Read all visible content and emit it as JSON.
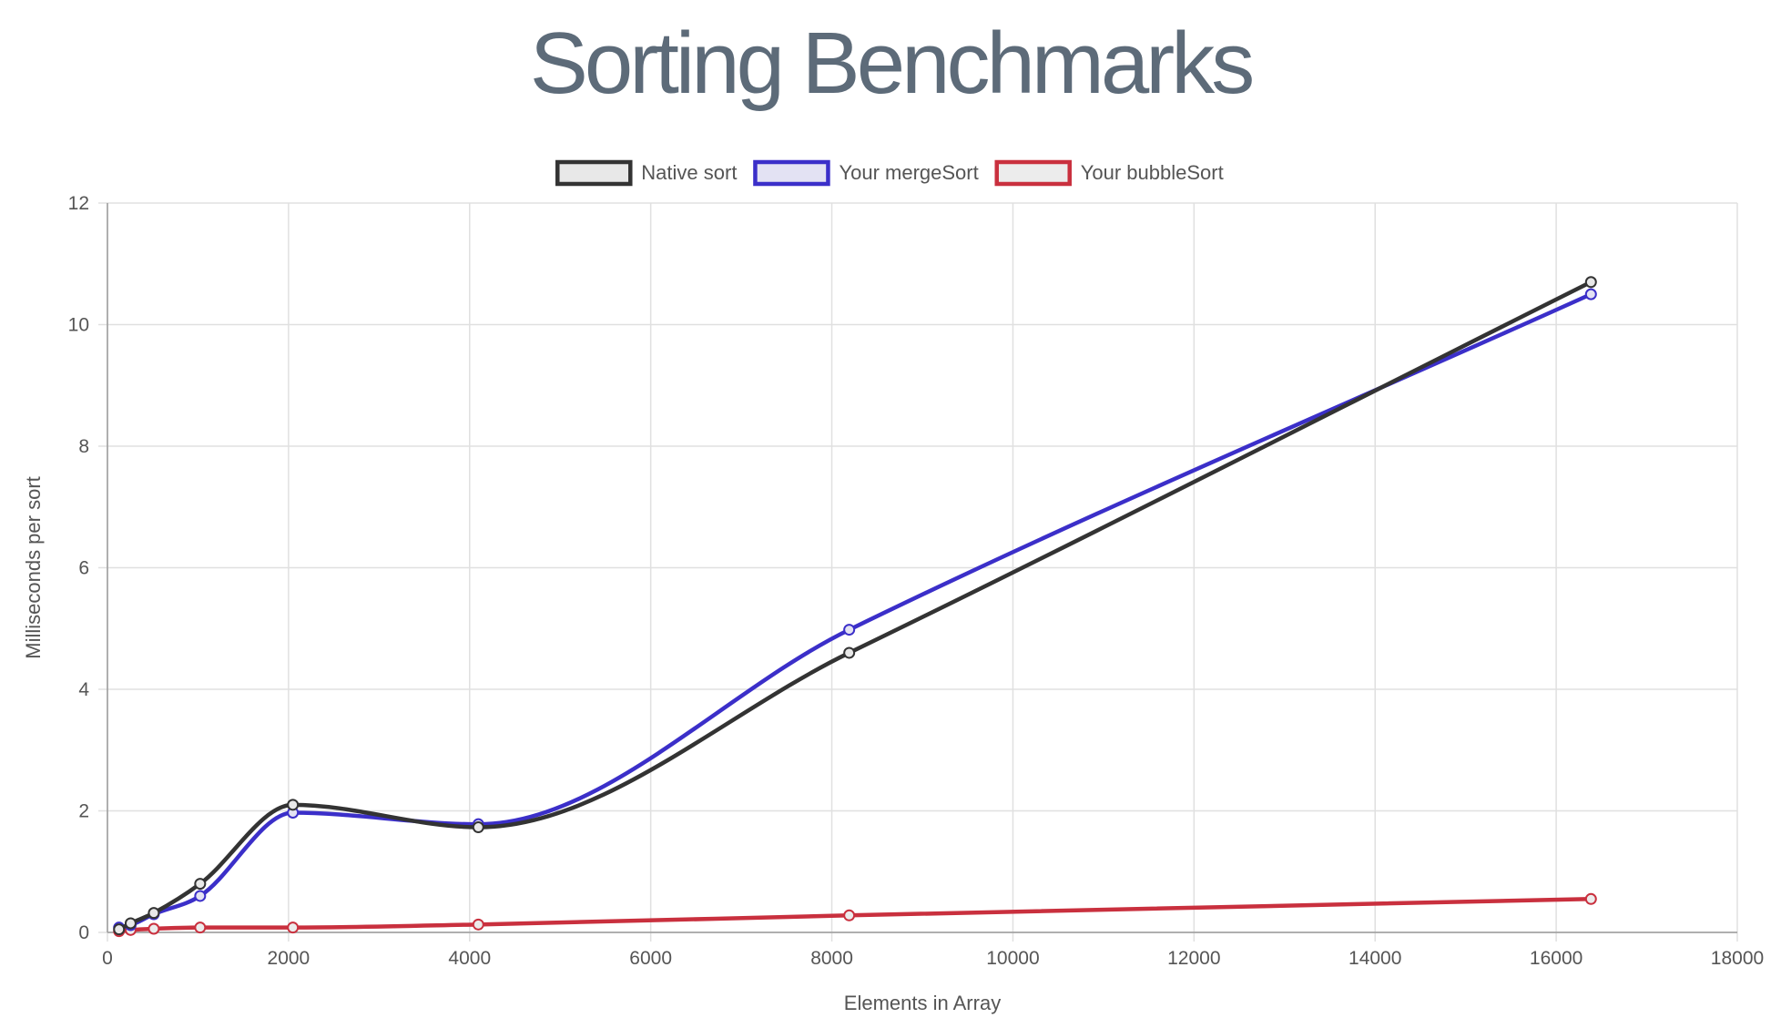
{
  "page": {
    "title": "Sorting Benchmarks"
  },
  "chart_data": {
    "type": "line",
    "title": "Sorting Benchmarks",
    "xlabel": "Elements in Array",
    "ylabel": "Milliseconds per sort",
    "xlim": [
      0,
      18000
    ],
    "ylim": [
      0,
      12
    ],
    "xticks": [
      0,
      2000,
      4000,
      6000,
      8000,
      10000,
      12000,
      14000,
      16000,
      18000
    ],
    "yticks": [
      0,
      2,
      4,
      6,
      8,
      10,
      12
    ],
    "grid": true,
    "legend_position": "top-center",
    "x": [
      128,
      256,
      512,
      1024,
      2048,
      4096,
      8192,
      16384
    ],
    "series": [
      {
        "name": "Native sort",
        "color": "#333333",
        "fill": "#e8e8e8",
        "values": [
          0.05,
          0.15,
          0.32,
          0.8,
          2.1,
          1.73,
          4.6,
          10.7
        ]
      },
      {
        "name": "Your mergeSort",
        "color": "#3b2fc9",
        "fill": "#e3e2f3",
        "values": [
          0.08,
          0.12,
          0.3,
          0.6,
          1.97,
          1.78,
          4.98,
          10.5
        ]
      },
      {
        "name": "Your bubbleSort",
        "color": "#c9303e",
        "fill": "#ececec",
        "values": [
          0.02,
          0.04,
          0.06,
          0.08,
          0.08,
          0.13,
          0.28,
          0.55
        ]
      }
    ]
  }
}
